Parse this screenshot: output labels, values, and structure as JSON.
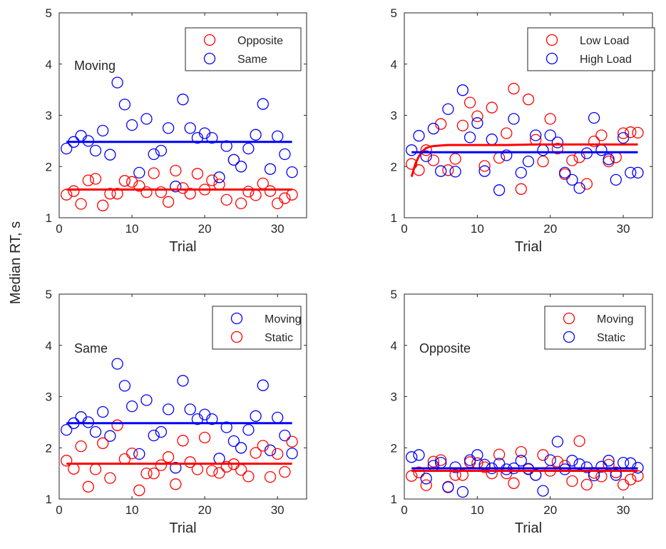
{
  "figure": {
    "ylabel": "Median RT, s"
  },
  "colors": {
    "red": "#ff0000",
    "blue": "#0000ff",
    "axis": "#262626"
  },
  "chart_data": [
    {
      "type": "scatter",
      "position": "top-left",
      "annotation": "Moving",
      "xlabel": "Trial",
      "ylabel": "",
      "xlim": [
        0,
        34
      ],
      "ylim": [
        1,
        5
      ],
      "xticks": [
        0,
        10,
        20,
        30
      ],
      "yticks": [
        1,
        2,
        3,
        4,
        5
      ],
      "legend_location": "top-right",
      "series": [
        {
          "name": "Opposite",
          "color": "#ff0000",
          "x": [
            1,
            2,
            3,
            4,
            5,
            6,
            7,
            8,
            9,
            10,
            11,
            12,
            13,
            14,
            15,
            16,
            17,
            18,
            19,
            20,
            21,
            22,
            23,
            24,
            25,
            26,
            27,
            28,
            29,
            30,
            31,
            32
          ],
          "y": [
            1.45,
            1.52,
            1.27,
            1.73,
            1.76,
            1.24,
            1.47,
            1.47,
            1.72,
            1.7,
            1.62,
            1.5,
            1.87,
            1.5,
            1.31,
            1.92,
            1.58,
            1.47,
            1.86,
            1.55,
            1.73,
            1.65,
            1.35,
            2.13,
            1.28,
            1.51,
            1.44,
            1.67,
            1.52,
            1.28,
            1.38,
            1.45
          ],
          "fit": {
            "x": [
              1,
              32
            ],
            "y": [
              1.55,
              1.55
            ]
          }
        },
        {
          "name": "Same",
          "color": "#0000ff",
          "x": [
            1,
            2,
            3,
            4,
            5,
            6,
            7,
            8,
            9,
            10,
            11,
            12,
            13,
            14,
            15,
            16,
            17,
            18,
            19,
            20,
            21,
            22,
            23,
            24,
            25,
            26,
            27,
            28,
            29,
            30,
            31,
            32
          ],
          "y": [
            2.35,
            2.48,
            2.6,
            2.5,
            2.31,
            2.7,
            2.23,
            3.64,
            3.21,
            2.81,
            1.88,
            2.93,
            2.24,
            2.31,
            2.75,
            1.61,
            3.31,
            2.75,
            2.56,
            2.65,
            2.56,
            1.79,
            2.4,
            2.13,
            2.0,
            2.35,
            2.62,
            3.22,
            1.95,
            2.59,
            2.24,
            1.89
          ],
          "fit": {
            "x": [
              1,
              32
            ],
            "y": [
              2.48,
              2.48
            ]
          }
        }
      ]
    },
    {
      "type": "scatter",
      "position": "top-right",
      "annotation": "",
      "xlabel": "Trial",
      "ylabel": "",
      "xlim": [
        0,
        34
      ],
      "ylim": [
        1,
        5
      ],
      "xticks": [
        0,
        10,
        20,
        30
      ],
      "yticks": [
        1,
        2,
        3,
        4,
        5
      ],
      "legend_location": "top-right",
      "series": [
        {
          "name": "Low Load",
          "color": "#ff0000",
          "x": [
            1,
            2,
            3,
            4,
            5,
            6,
            7,
            8,
            9,
            10,
            11,
            12,
            13,
            14,
            15,
            16,
            17,
            18,
            19,
            20,
            21,
            22,
            23,
            24,
            25,
            26,
            27,
            28,
            29,
            30,
            31,
            32
          ],
          "y": [
            2.05,
            1.93,
            2.32,
            2.12,
            2.83,
            1.93,
            2.15,
            2.8,
            3.25,
            2.98,
            2.01,
            3.15,
            2.17,
            2.65,
            3.52,
            1.56,
            3.31,
            2.52,
            2.1,
            2.93,
            2.35,
            1.85,
            2.12,
            2.18,
            1.66,
            2.49,
            2.61,
            2.1,
            2.18,
            2.65,
            2.67,
            2.66
          ],
          "fit": {
            "x": [
              1,
              1.5,
              2,
              2.5,
              3,
              3.5,
              4,
              5,
              6,
              8,
              10,
              14,
              18,
              24,
              32
            ],
            "y": [
              1.8,
              2.05,
              2.2,
              2.3,
              2.36,
              2.39,
              2.4,
              2.41,
              2.42,
              2.42,
              2.42,
              2.42,
              2.43,
              2.43,
              2.43
            ]
          }
        },
        {
          "name": "High Load",
          "color": "#0000ff",
          "x": [
            1,
            2,
            3,
            4,
            5,
            6,
            7,
            8,
            9,
            10,
            11,
            12,
            13,
            14,
            15,
            16,
            17,
            18,
            19,
            20,
            21,
            22,
            23,
            24,
            25,
            26,
            27,
            28,
            29,
            30,
            31,
            32
          ],
          "y": [
            2.32,
            2.6,
            2.2,
            2.74,
            1.91,
            3.12,
            1.9,
            3.49,
            2.57,
            2.85,
            1.91,
            2.53,
            1.54,
            2.22,
            2.93,
            1.88,
            2.1,
            2.61,
            2.32,
            2.61,
            2.47,
            1.88,
            1.74,
            1.58,
            2.26,
            2.95,
            2.32,
            2.14,
            1.74,
            2.56,
            1.88,
            1.88
          ],
          "fit": {
            "x": [
              1,
              32
            ],
            "y": [
              2.28,
              2.28
            ]
          }
        }
      ]
    },
    {
      "type": "scatter",
      "position": "bottom-left",
      "annotation": "Same",
      "xlabel": "Trial",
      "ylabel": "",
      "xlim": [
        0,
        34
      ],
      "ylim": [
        1,
        5
      ],
      "xticks": [
        0,
        10,
        20,
        30
      ],
      "yticks": [
        1,
        2,
        3,
        4,
        5
      ],
      "legend_location": "top-right",
      "series": [
        {
          "name": "Moving",
          "color": "#0000ff",
          "x": [
            1,
            2,
            3,
            4,
            5,
            6,
            7,
            8,
            9,
            10,
            11,
            12,
            13,
            14,
            15,
            16,
            17,
            18,
            19,
            20,
            21,
            22,
            23,
            24,
            25,
            26,
            27,
            28,
            29,
            30,
            31,
            32
          ],
          "y": [
            2.35,
            2.48,
            2.6,
            2.5,
            2.31,
            2.7,
            2.23,
            3.64,
            3.21,
            2.81,
            1.88,
            2.93,
            2.24,
            2.31,
            2.75,
            1.61,
            3.31,
            2.75,
            2.56,
            2.65,
            2.56,
            1.79,
            2.4,
            2.13,
            2.0,
            2.35,
            2.62,
            3.22,
            1.95,
            2.59,
            2.24,
            1.89
          ],
          "fit": {
            "x": [
              1,
              32
            ],
            "y": [
              2.48,
              2.48
            ]
          }
        },
        {
          "name": "Static",
          "color": "#ff0000",
          "x": [
            1,
            2,
            3,
            4,
            5,
            6,
            7,
            8,
            9,
            10,
            11,
            12,
            13,
            14,
            15,
            16,
            17,
            18,
            19,
            20,
            21,
            22,
            23,
            24,
            25,
            26,
            27,
            28,
            29,
            30,
            31,
            32
          ],
          "y": [
            1.75,
            1.59,
            2.03,
            1.24,
            1.58,
            2.09,
            1.41,
            2.44,
            1.78,
            1.89,
            1.17,
            1.5,
            1.5,
            1.66,
            1.82,
            1.29,
            2.14,
            1.72,
            1.58,
            2.2,
            1.55,
            1.51,
            1.63,
            1.68,
            1.57,
            1.44,
            1.9,
            2.04,
            1.43,
            1.88,
            1.53,
            2.12
          ],
          "fit": {
            "x": [
              1,
              32
            ],
            "y": [
              1.69,
              1.69
            ]
          }
        }
      ]
    },
    {
      "type": "scatter",
      "position": "bottom-right",
      "annotation": "Opposite",
      "xlabel": "Trial",
      "ylabel": "",
      "xlim": [
        0,
        34
      ],
      "ylim": [
        1,
        5
      ],
      "xticks": [
        0,
        10,
        20,
        30
      ],
      "yticks": [
        1,
        2,
        3,
        4,
        5
      ],
      "legend_location": "top-right",
      "series": [
        {
          "name": "Moving",
          "color": "#ff0000",
          "x": [
            1,
            2,
            3,
            4,
            5,
            6,
            7,
            8,
            9,
            10,
            11,
            12,
            13,
            14,
            15,
            16,
            17,
            18,
            19,
            20,
            21,
            22,
            23,
            24,
            25,
            26,
            27,
            28,
            29,
            30,
            31,
            32
          ],
          "y": [
            1.45,
            1.52,
            1.27,
            1.73,
            1.76,
            1.24,
            1.47,
            1.47,
            1.72,
            1.7,
            1.62,
            1.5,
            1.87,
            1.5,
            1.31,
            1.92,
            1.58,
            1.47,
            1.86,
            1.55,
            1.73,
            1.65,
            1.35,
            2.13,
            1.28,
            1.51,
            1.44,
            1.67,
            1.52,
            1.28,
            1.38,
            1.45
          ],
          "fit": {
            "x": [
              1,
              32
            ],
            "y": [
              1.55,
              1.55
            ]
          }
        },
        {
          "name": "Static",
          "color": "#0000ff",
          "x": [
            1,
            2,
            3,
            4,
            5,
            6,
            7,
            8,
            9,
            10,
            11,
            12,
            13,
            14,
            15,
            16,
            17,
            18,
            19,
            20,
            21,
            22,
            23,
            24,
            25,
            26,
            27,
            28,
            29,
            30,
            31,
            32
          ],
          "y": [
            1.82,
            1.86,
            1.4,
            1.65,
            1.71,
            1.23,
            1.62,
            1.14,
            1.76,
            1.86,
            1.67,
            1.6,
            1.69,
            1.58,
            1.6,
            1.75,
            1.59,
            1.47,
            1.16,
            1.76,
            2.12,
            1.58,
            1.75,
            1.68,
            1.62,
            1.46,
            1.63,
            1.75,
            1.47,
            1.71,
            1.7,
            1.61
          ],
          "fit": {
            "x": [
              1,
              32
            ],
            "y": [
              1.6,
              1.6
            ]
          }
        }
      ]
    }
  ]
}
